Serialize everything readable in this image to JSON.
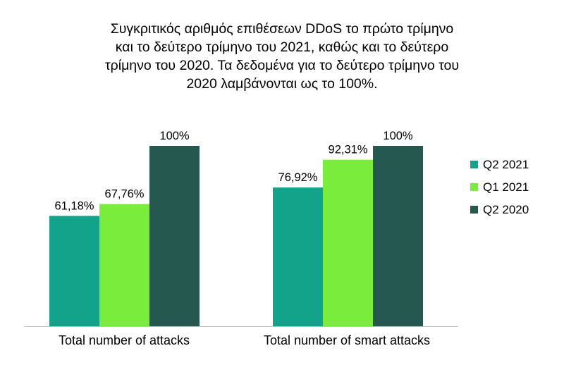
{
  "chart_data": {
    "type": "bar",
    "title_lines": [
      "Συγκριτικός αριθμός επιθέσεων DDoS το πρώτο τρίμηνο",
      "και το δεύτερο τρίμηνο του 2021, καθώς και το δεύτερο",
      "τρίμηνο του 2020. Τα δεδομένα για το δεύτερο τρίμηνο του",
      "2020 λαμβάνονται ως το 100%."
    ],
    "categories": [
      "Total number of attacks",
      "Total number of smart attacks"
    ],
    "series": [
      {
        "name": "Q2 2021",
        "color": "#12a38a",
        "values": [
          61.18,
          76.92
        ],
        "labels": [
          "61,18%",
          "76,92%"
        ]
      },
      {
        "name": "Q1 2021",
        "color": "#7aec3c",
        "values": [
          67.76,
          92.31
        ],
        "labels": [
          "67,76%",
          "92,31%"
        ]
      },
      {
        "name": "Q2 2020",
        "color": "#25594f",
        "values": [
          100,
          100
        ],
        "labels": [
          "100%",
          "100%"
        ]
      }
    ],
    "ylim": [
      0,
      100
    ],
    "grid": false,
    "legend_position": "right"
  }
}
